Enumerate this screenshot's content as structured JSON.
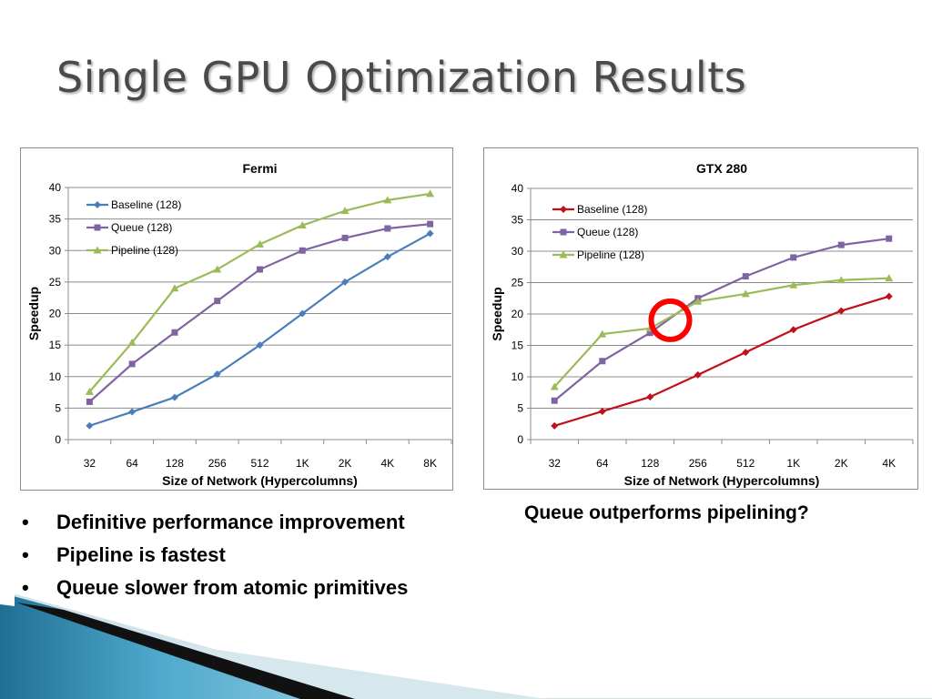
{
  "slide": {
    "title": "Single GPU Optimization Results",
    "bullets": [
      "Definitive performance improvement",
      "Pipeline is fastest",
      "Queue slower from atomic primitives"
    ],
    "side_note": "Queue outperforms pipelining?",
    "bullet_glyph": "•"
  },
  "chart_data": [
    {
      "type": "line",
      "title": "Fermi",
      "xlabel": "Size of Network (Hypercolumns)",
      "ylabel": "Speedup",
      "categories": [
        "32",
        "64",
        "128",
        "256",
        "512",
        "1K",
        "2K",
        "4K",
        "8K"
      ],
      "ylim": [
        0,
        40
      ],
      "yticks": [
        0,
        5,
        10,
        15,
        20,
        25,
        30,
        35,
        40
      ],
      "grid": true,
      "legend": "top-left",
      "series": [
        {
          "name": "Baseline (128)",
          "color": "#4a7ebb",
          "marker": "diamond",
          "values": [
            2.2,
            4.4,
            6.7,
            10.4,
            15,
            20,
            25,
            29,
            32.7
          ]
        },
        {
          "name": "Queue (128)",
          "color": "#8064a2",
          "marker": "square",
          "values": [
            6,
            12,
            17,
            22,
            27,
            30,
            32,
            33.5,
            34.2
          ]
        },
        {
          "name": "Pipeline (128)",
          "color": "#9bbb59",
          "marker": "triangle",
          "values": [
            7.6,
            15.4,
            24,
            27,
            31,
            34,
            36.3,
            38,
            39
          ]
        }
      ]
    },
    {
      "type": "line",
      "title": "GTX 280",
      "xlabel": "Size of Network (Hypercolumns)",
      "ylabel": "Speedup",
      "categories": [
        "32",
        "64",
        "128",
        "256",
        "512",
        "1K",
        "2K",
        "4K"
      ],
      "ylim": [
        0,
        40
      ],
      "yticks": [
        0,
        5,
        10,
        15,
        20,
        25,
        30,
        35,
        40
      ],
      "grid": true,
      "legend": "top-left",
      "series": [
        {
          "name": "Baseline (128)",
          "color": "#c0101a",
          "marker": "diamond",
          "values": [
            2.2,
            4.5,
            6.8,
            10.3,
            13.9,
            17.5,
            20.5,
            22.8
          ]
        },
        {
          "name": "Queue (128)",
          "color": "#8064a2",
          "marker": "square",
          "values": [
            6.2,
            12.5,
            17,
            22.5,
            26,
            29,
            31,
            32
          ]
        },
        {
          "name": "Pipeline (128)",
          "color": "#9bbb59",
          "marker": "triangle",
          "values": [
            8.4,
            16.8,
            17.7,
            22,
            23.2,
            24.6,
            25.4,
            25.7
          ]
        }
      ],
      "annotation": {
        "type": "circle",
        "color": "#ff0000",
        "at_category": "256",
        "at_value": 19
      }
    }
  ]
}
